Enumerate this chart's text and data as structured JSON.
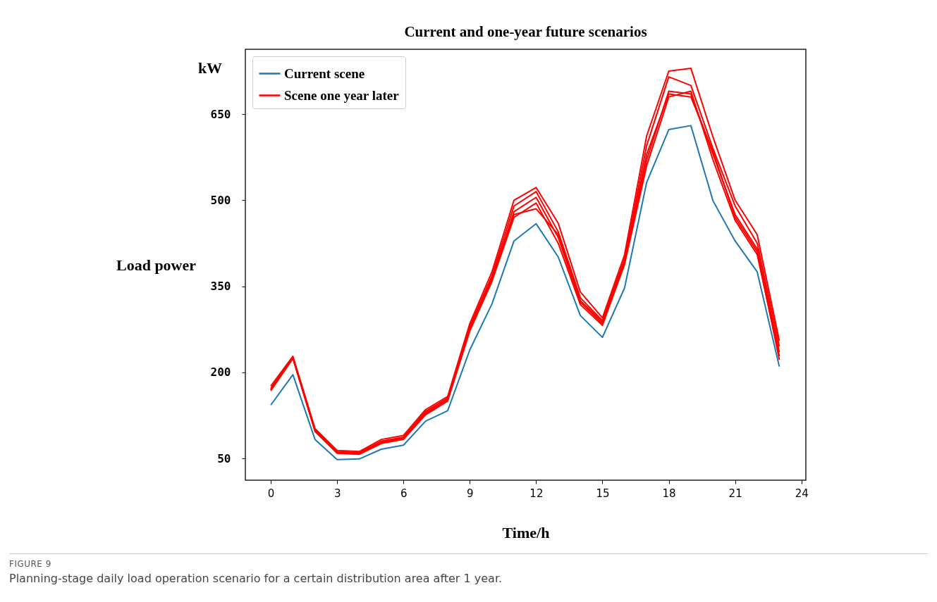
{
  "chart_data": {
    "type": "line",
    "title": "Current and one-year future scenarios",
    "xlabel": "Time/h",
    "ylabel": "Load power",
    "annotations": [
      "kW",
      "FIGURE 9",
      "Planning-stage daily load operation scenario for a certain distribution area after 1 year."
    ],
    "x": [
      0,
      1,
      2,
      3,
      4,
      5,
      6,
      7,
      8,
      9,
      10,
      11,
      12,
      13,
      14,
      15,
      16,
      17,
      18,
      19,
      20,
      21,
      22,
      23
    ],
    "series": [
      {
        "name": "Current scene",
        "color": "#1f77b4",
        "values": [
          143,
          196,
          83,
          48,
          49,
          66,
          73,
          115,
          133,
          239,
          319,
          429,
          459,
          401,
          299,
          261,
          347,
          531,
          623,
          630,
          499,
          429,
          375,
          210
        ]
      },
      {
        "name": "Scene one year later",
        "color": "#ff0000",
        "values": [
          176,
          228,
          102,
          64,
          62,
          83,
          90,
          135,
          158,
          285,
          375,
          500,
          522,
          460,
          340,
          295,
          405,
          612,
          725,
          730,
          610,
          500,
          440,
          255
        ]
      },
      {
        "color": "#ff0000",
        "values": [
          172,
          226,
          100,
          62,
          60,
          80,
          87,
          132,
          155,
          280,
          368,
          490,
          515,
          445,
          330,
          290,
          398,
          595,
          715,
          700,
          590,
          490,
          425,
          245
        ]
      },
      {
        "color": "#ff0000",
        "values": [
          170,
          225,
          98,
          60,
          58,
          78,
          85,
          128,
          152,
          276,
          362,
          480,
          505,
          435,
          322,
          285,
          392,
          570,
          690,
          685,
          580,
          475,
          415,
          235
        ]
      },
      {
        "color": "#ff0000",
        "values": [
          168,
          224,
          97,
          59,
          57,
          76,
          83,
          126,
          150,
          272,
          358,
          470,
          495,
          425,
          318,
          282,
          388,
          560,
          680,
          690,
          570,
          465,
          405,
          228
        ]
      },
      {
        "color": "#ff0000",
        "values": [
          170,
          226,
          99,
          61,
          59,
          79,
          86,
          130,
          153,
          278,
          365,
          475,
          485,
          440,
          325,
          288,
          395,
          580,
          685,
          680,
          585,
          470,
          410,
          222
        ]
      }
    ],
    "xlim": [
      -1.15,
      24.2
    ],
    "xticks": [
      0,
      3,
      6,
      9,
      12,
      15,
      18,
      21,
      24
    ],
    "ylim": [
      12,
      763
    ],
    "yticks": [
      50,
      200,
      350,
      500,
      650
    ],
    "grid": false,
    "legend": "top left",
    "line_style": "solid",
    "marker": "none"
  }
}
